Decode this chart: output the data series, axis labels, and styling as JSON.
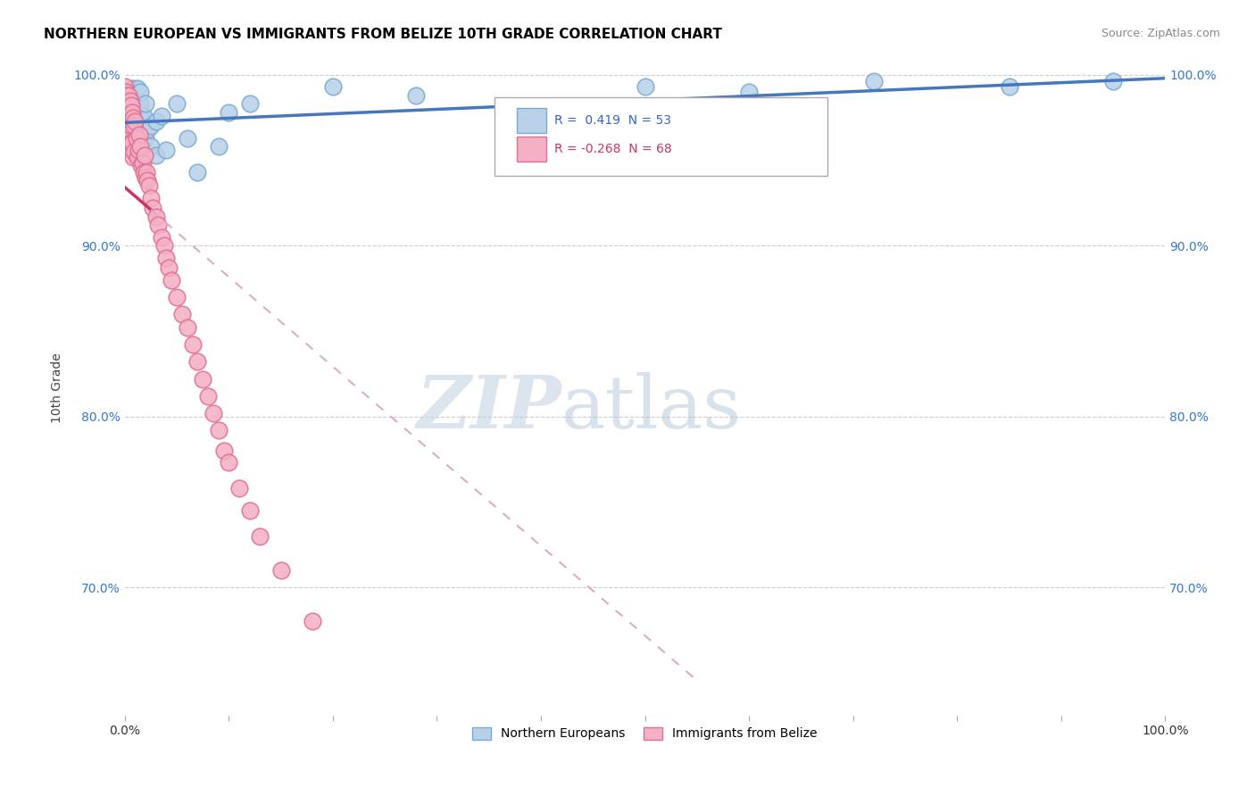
{
  "title": "NORTHERN EUROPEAN VS IMMIGRANTS FROM BELIZE 10TH GRADE CORRELATION CHART",
  "source": "Source: ZipAtlas.com",
  "ylabel": "10th Grade",
  "xlim": [
    0,
    1.0
  ],
  "ylim": [
    0.625,
    1.008
  ],
  "yticks": [
    0.7,
    0.8,
    0.9,
    1.0
  ],
  "ytick_labels": [
    "70.0%",
    "80.0%",
    "90.0%",
    "100.0%"
  ],
  "blue_R": 0.419,
  "blue_N": 53,
  "pink_R": -0.268,
  "pink_N": 68,
  "blue_color": "#b8d0e8",
  "blue_edge": "#7aaad0",
  "pink_color": "#f4b0c4",
  "pink_edge": "#e07090",
  "blue_line_color": "#4477bb",
  "pink_line_solid_color": "#cc3366",
  "pink_line_dash_color": "#ddaacc",
  "watermark_zip": "ZIP",
  "watermark_atlas": "atlas",
  "legend_label_blue": "Northern Europeans",
  "legend_label_pink": "Immigrants from Belize",
  "blue_scatter_x": [
    0.001,
    0.001,
    0.002,
    0.002,
    0.003,
    0.003,
    0.004,
    0.004,
    0.005,
    0.005,
    0.006,
    0.006,
    0.007,
    0.007,
    0.008,
    0.008,
    0.009,
    0.009,
    0.01,
    0.01,
    0.011,
    0.012,
    0.012,
    0.013,
    0.013,
    0.014,
    0.015,
    0.015,
    0.016,
    0.017,
    0.018,
    0.02,
    0.02,
    0.022,
    0.025,
    0.025,
    0.03,
    0.03,
    0.035,
    0.04,
    0.05,
    0.06,
    0.07,
    0.09,
    0.1,
    0.12,
    0.2,
    0.28,
    0.5,
    0.6,
    0.72,
    0.85,
    0.95
  ],
  "blue_scatter_y": [
    0.974,
    0.982,
    0.98,
    0.99,
    0.972,
    0.985,
    0.968,
    0.984,
    0.978,
    0.99,
    0.966,
    0.976,
    0.97,
    0.982,
    0.964,
    0.992,
    0.958,
    0.972,
    0.973,
    0.986,
    0.963,
    0.968,
    0.992,
    0.963,
    0.978,
    0.978,
    0.983,
    0.99,
    0.958,
    0.974,
    0.976,
    0.963,
    0.983,
    0.968,
    0.958,
    0.97,
    0.973,
    0.953,
    0.976,
    0.956,
    0.983,
    0.963,
    0.943,
    0.958,
    0.978,
    0.983,
    0.993,
    0.988,
    0.993,
    0.99,
    0.996,
    0.993,
    0.996
  ],
  "pink_scatter_x": [
    0.0003,
    0.0003,
    0.0005,
    0.0005,
    0.001,
    0.001,
    0.001,
    0.001,
    0.002,
    0.002,
    0.002,
    0.002,
    0.003,
    0.003,
    0.003,
    0.004,
    0.004,
    0.004,
    0.005,
    0.005,
    0.005,
    0.006,
    0.006,
    0.007,
    0.007,
    0.008,
    0.008,
    0.009,
    0.009,
    0.01,
    0.011,
    0.012,
    0.013,
    0.014,
    0.015,
    0.016,
    0.017,
    0.018,
    0.019,
    0.02,
    0.021,
    0.022,
    0.023,
    0.025,
    0.027,
    0.03,
    0.032,
    0.035,
    0.038,
    0.04,
    0.042,
    0.045,
    0.05,
    0.055,
    0.06,
    0.065,
    0.07,
    0.075,
    0.08,
    0.085,
    0.09,
    0.095,
    0.1,
    0.11,
    0.12,
    0.13,
    0.15,
    0.18
  ],
  "pink_scatter_y": [
    0.993,
    0.986,
    0.988,
    0.98,
    0.99,
    0.982,
    0.973,
    0.966,
    0.988,
    0.978,
    0.968,
    0.958,
    0.985,
    0.975,
    0.962,
    0.988,
    0.977,
    0.968,
    0.985,
    0.973,
    0.96,
    0.982,
    0.97,
    0.978,
    0.96,
    0.975,
    0.952,
    0.97,
    0.955,
    0.973,
    0.963,
    0.952,
    0.956,
    0.965,
    0.958,
    0.947,
    0.948,
    0.943,
    0.953,
    0.94,
    0.943,
    0.938,
    0.935,
    0.928,
    0.922,
    0.917,
    0.912,
    0.905,
    0.9,
    0.893,
    0.887,
    0.88,
    0.87,
    0.86,
    0.852,
    0.842,
    0.832,
    0.822,
    0.812,
    0.802,
    0.792,
    0.78,
    0.773,
    0.758,
    0.745,
    0.73,
    0.71,
    0.68
  ]
}
